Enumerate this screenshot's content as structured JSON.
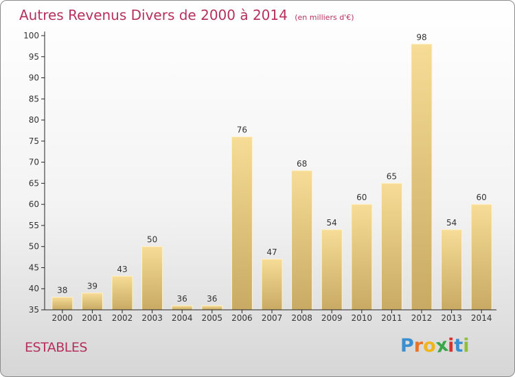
{
  "header": {
    "title": "Autres Revenus Divers de 2000 à 2014",
    "subtitle": "(en milliers d'€)"
  },
  "footer": {
    "commune": "ESTABLES",
    "logo_letters": [
      "P",
      "r",
      "o",
      "x",
      "i",
      "t",
      "i"
    ],
    "logo_colors": [
      "#3a8fd0",
      "#e8732a",
      "#f0b41c",
      "#3aa84a",
      "#d8322e",
      "#3a8fd0",
      "#8fbf3a"
    ]
  },
  "colors": {
    "bar_light": "#f6dc96",
    "bar_dark": "#c8aa64",
    "axis": "#222222",
    "title": "#b5305e"
  },
  "chart_data": {
    "type": "bar",
    "title": "Autres Revenus Divers de 2000 à 2014",
    "subtitle": "(en milliers d'€)",
    "categories": [
      "2000",
      "2001",
      "2002",
      "2003",
      "2004",
      "2005",
      "2006",
      "2007",
      "2008",
      "2009",
      "2010",
      "2011",
      "2012",
      "2013",
      "2014"
    ],
    "values": [
      38,
      39,
      43,
      50,
      36,
      36,
      76,
      47,
      68,
      54,
      60,
      65,
      98,
      54,
      60
    ],
    "ylim": [
      35,
      100
    ],
    "yticks": [
      35,
      40,
      45,
      50,
      55,
      60,
      65,
      70,
      75,
      80,
      85,
      90,
      95,
      100
    ],
    "grid": false,
    "legend": "none"
  }
}
